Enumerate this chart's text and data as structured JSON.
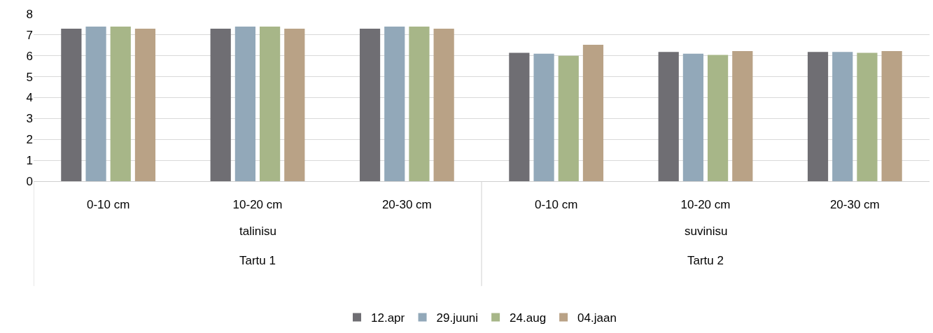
{
  "chart_data": {
    "type": "bar",
    "categories": [
      "0-10 cm",
      "10-20 cm",
      "20-30 cm",
      "0-10 cm",
      "10-20 cm",
      "20-30 cm"
    ],
    "series": [
      {
        "name": "12.apr",
        "color": "#6f6e73",
        "values": [
          7.3,
          7.3,
          7.3,
          6.14,
          6.18,
          6.18
        ]
      },
      {
        "name": "29.juuni",
        "color": "#92a8b9",
        "values": [
          7.4,
          7.4,
          7.4,
          6.1,
          6.1,
          6.18
        ]
      },
      {
        "name": "24.aug",
        "color": "#a7b688",
        "values": [
          7.4,
          7.4,
          7.4,
          6.0,
          6.04,
          6.14
        ]
      },
      {
        "name": "04.jaan",
        "color": "#b9a286",
        "values": [
          7.3,
          7.3,
          7.3,
          6.53,
          6.23,
          6.23
        ]
      }
    ],
    "annotations": [
      "talinisu",
      "suvinisu",
      "Tartu 1",
      "Tartu 2"
    ],
    "ylim": [
      0,
      8
    ],
    "yticks": [
      0,
      1,
      2,
      3,
      4,
      5,
      6,
      7,
      8
    ],
    "grid": "y",
    "legend": "bottom"
  }
}
